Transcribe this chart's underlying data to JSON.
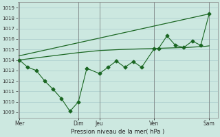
{
  "xlabel": "Pression niveau de la mer( hPa )",
  "ylim": [
    1008.5,
    1019.5
  ],
  "yticks": [
    1009,
    1010,
    1011,
    1012,
    1013,
    1014,
    1015,
    1016,
    1017,
    1018,
    1019
  ],
  "bg_color": "#cce8e0",
  "grid_color": "#aacccc",
  "line_color": "#1a6622",
  "day_labels": [
    "Mer",
    "",
    "Dim",
    "Jeu",
    "",
    "Ven",
    "",
    "Sam"
  ],
  "day_positions": [
    0.0,
    3.5,
    7.0,
    9.5,
    13.0,
    16.0,
    19.5,
    22.5
  ],
  "day_vlines": [
    0.0,
    7.0,
    9.5,
    16.0,
    22.5
  ],
  "xlim": [
    -0.2,
    23.5
  ],
  "smooth_line_x": [
    0,
    7.0,
    9.5,
    12,
    14,
    16,
    18,
    20,
    22,
    22.5
  ],
  "smooth_line_y": [
    1014.0,
    1014.7,
    1014.9,
    1015.0,
    1015.05,
    1015.1,
    1015.15,
    1015.2,
    1015.3,
    1015.35
  ],
  "top_line_x": [
    0,
    22.5
  ],
  "top_line_y": [
    1014.4,
    1018.4
  ],
  "jagged_x": [
    0,
    1,
    2,
    3,
    4,
    5,
    6,
    7,
    8,
    9.5,
    10.5,
    11.5,
    12.5,
    13.5,
    14.5,
    16,
    16.5,
    17.5,
    18.5,
    19.5,
    20.5,
    21.5,
    22.5
  ],
  "jagged_y": [
    1014.0,
    1013.3,
    1013.0,
    1012.0,
    1011.2,
    1010.3,
    1009.1,
    1010.0,
    1013.2,
    1012.7,
    1013.3,
    1013.9,
    1013.3,
    1013.85,
    1013.3,
    1015.1,
    1015.1,
    1016.3,
    1015.4,
    1015.2,
    1015.8,
    1015.4,
    1018.4
  ],
  "figsize": [
    3.2,
    2.0
  ],
  "dpi": 100
}
